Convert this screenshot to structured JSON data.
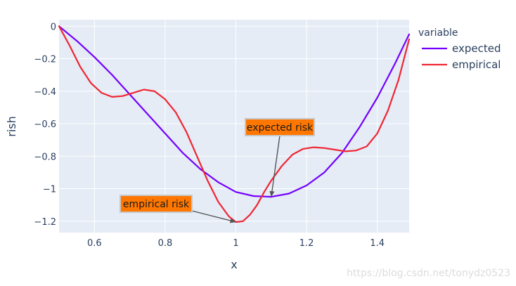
{
  "chart_data": {
    "type": "line",
    "xlabel": "x",
    "ylabel": "rish",
    "xlim": [
      0.5,
      1.49
    ],
    "ylim": [
      -1.27,
      0.04
    ],
    "xticks": [
      0.6,
      0.8,
      1,
      1.2,
      1.4
    ],
    "xtick_labels": [
      "0.6",
      "0.8",
      "1",
      "1.2",
      "1.4"
    ],
    "yticks": [
      0,
      -0.2,
      -0.4,
      -0.6,
      -0.8,
      -1,
      -1.2
    ],
    "ytick_labels": [
      "0",
      "−0.2",
      "−0.4",
      "−0.6",
      "−0.8",
      "−1",
      "−1.2"
    ],
    "grid": true,
    "legend": {
      "title": "variable",
      "placement": "right"
    },
    "series": [
      {
        "name": "expected",
        "color": "#7300ff",
        "x": [
          0.5,
          0.55,
          0.6,
          0.65,
          0.7,
          0.75,
          0.8,
          0.85,
          0.9,
          0.95,
          1.0,
          1.05,
          1.1,
          1.15,
          1.2,
          1.25,
          1.3,
          1.35,
          1.4,
          1.45,
          1.49
        ],
        "y": [
          0,
          -0.09,
          -0.19,
          -0.3,
          -0.42,
          -0.54,
          -0.66,
          -0.78,
          -0.88,
          -0.96,
          -1.02,
          -1.045,
          -1.05,
          -1.03,
          -0.98,
          -0.9,
          -0.78,
          -0.62,
          -0.44,
          -0.23,
          -0.05
        ]
      },
      {
        "name": "empirical",
        "color": "#ef2633",
        "x": [
          0.5,
          0.53,
          0.56,
          0.59,
          0.62,
          0.65,
          0.68,
          0.71,
          0.74,
          0.77,
          0.8,
          0.83,
          0.86,
          0.89,
          0.92,
          0.95,
          0.98,
          1.0,
          1.02,
          1.04,
          1.06,
          1.08,
          1.1,
          1.13,
          1.16,
          1.19,
          1.22,
          1.25,
          1.28,
          1.31,
          1.34,
          1.37,
          1.4,
          1.43,
          1.46,
          1.49
        ],
        "y": [
          0,
          -0.12,
          -0.25,
          -0.35,
          -0.41,
          -0.435,
          -0.43,
          -0.41,
          -0.39,
          -0.4,
          -0.45,
          -0.53,
          -0.65,
          -0.8,
          -0.95,
          -1.08,
          -1.17,
          -1.205,
          -1.2,
          -1.16,
          -1.1,
          -1.02,
          -0.95,
          -0.86,
          -0.79,
          -0.755,
          -0.745,
          -0.75,
          -0.76,
          -0.77,
          -0.765,
          -0.74,
          -0.66,
          -0.52,
          -0.33,
          -0.08
        ]
      }
    ],
    "annotations": [
      {
        "text": "expected risk",
        "target": [
          1.1,
          -1.05
        ]
      },
      {
        "text": "empirical risk",
        "target": [
          1.0,
          -1.205
        ]
      }
    ]
  },
  "watermark": "https://blog.csdn.net/tonydz0523"
}
